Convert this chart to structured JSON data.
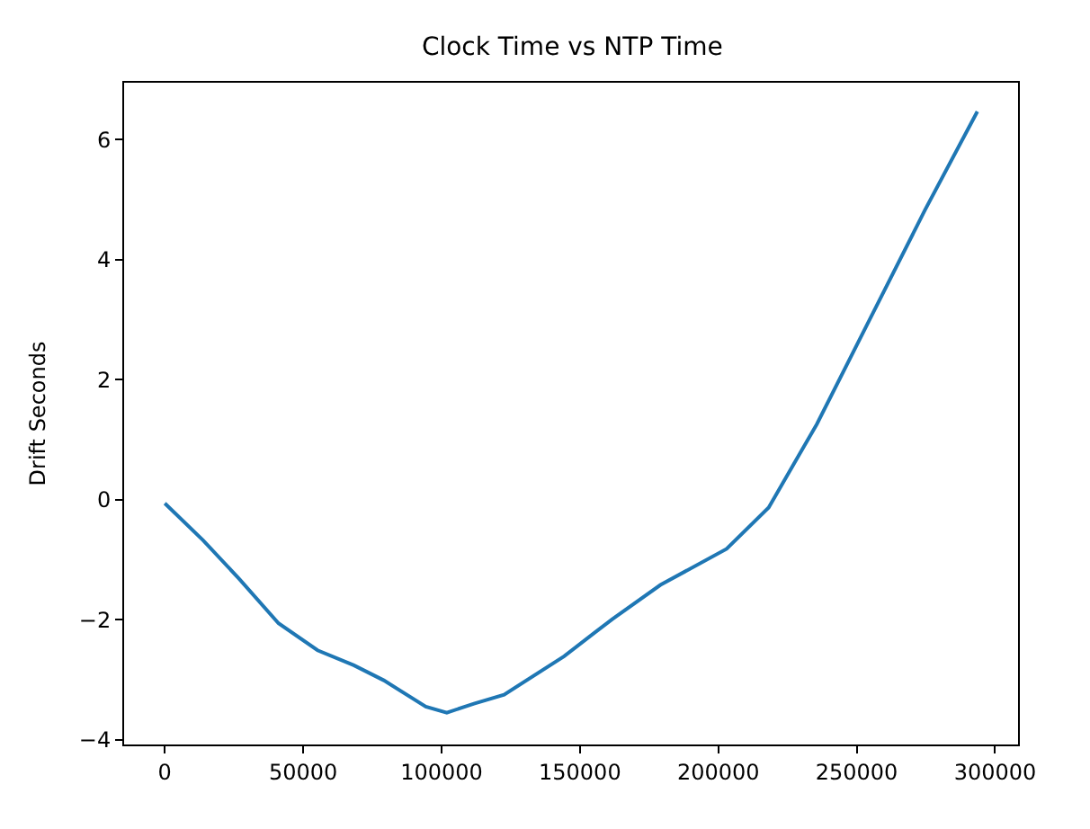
{
  "chart_data": {
    "type": "line",
    "title": "Clock Time vs NTP Time",
    "ylabel": "Drift Seconds",
    "x": [
      0,
      13900,
      26900,
      41100,
      55200,
      68300,
      79100,
      94300,
      101900,
      111700,
      122600,
      144300,
      155200,
      161700,
      179100,
      203000,
      218200,
      235600,
      255100,
      274700,
      293600
    ],
    "series": [
      {
        "color": "#1f77b4",
        "values": [
          -0.06,
          -0.68,
          -1.32,
          -2.06,
          -2.51,
          -2.76,
          -3.01,
          -3.45,
          -3.55,
          -3.4,
          -3.25,
          -2.61,
          -2.22,
          -1.99,
          -1.42,
          -0.82,
          -0.13,
          1.26,
          3.04,
          4.83,
          6.47
        ]
      }
    ],
    "xlim": [
      -14700,
      308300
    ],
    "xticks": [
      0,
      50000,
      100000,
      150000,
      200000,
      250000,
      300000
    ],
    "ylim": [
      -4.08,
      6.95
    ],
    "yticks": [
      -4,
      -2,
      0,
      2,
      4,
      6
    ],
    "marker": "none",
    "line_style": "solid"
  }
}
